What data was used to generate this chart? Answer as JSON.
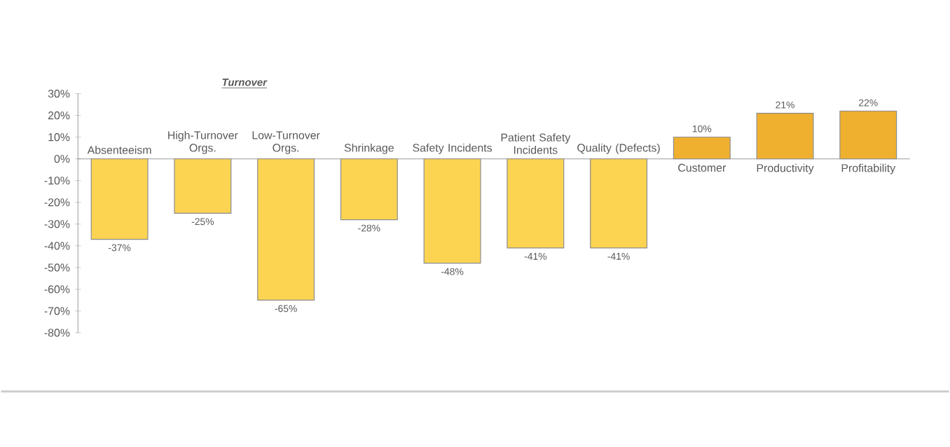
{
  "chart_data": {
    "type": "bar",
    "categories": [
      "Absenteeism",
      "High-Turnover Orgs.",
      "Low-Turnover Orgs.",
      "Shrinkage",
      "Safety Incidents",
      "Patient Safety Incidents",
      "Quality (Defects)",
      "Customer",
      "Productivity",
      "Profitability"
    ],
    "values": [
      -37,
      -25,
      -65,
      -28,
      -48,
      -41,
      -41,
      10,
      21,
      22
    ],
    "value_labels": [
      "-37%",
      "-25%",
      "-65%",
      "-28%",
      "-48%",
      "-41%",
      "-41%",
      "10%",
      "21%",
      "22%"
    ],
    "colors": [
      "#fcd452",
      "#fcd452",
      "#fcd452",
      "#fcd452",
      "#fcd452",
      "#fcd452",
      "#fcd452",
      "#efb030",
      "#efb030",
      "#efb030"
    ],
    "ylim": [
      -80,
      30
    ],
    "yticks": [
      {
        "value": 30,
        "label": "30%"
      },
      {
        "value": 20,
        "label": "20%"
      },
      {
        "value": 10,
        "label": "10%"
      },
      {
        "value": 0,
        "label": "0%"
      },
      {
        "value": -10,
        "label": "-10%"
      },
      {
        "value": -20,
        "label": "-20%"
      },
      {
        "value": -30,
        "label": "-30%"
      },
      {
        "value": -40,
        "label": "-40%"
      },
      {
        "value": -50,
        "label": "-50%"
      },
      {
        "value": -60,
        "label": "-60%"
      },
      {
        "value": -70,
        "label": "-70%"
      },
      {
        "value": -80,
        "label": "-80%"
      }
    ],
    "grid": false,
    "annotations": [
      "Turnover"
    ]
  }
}
